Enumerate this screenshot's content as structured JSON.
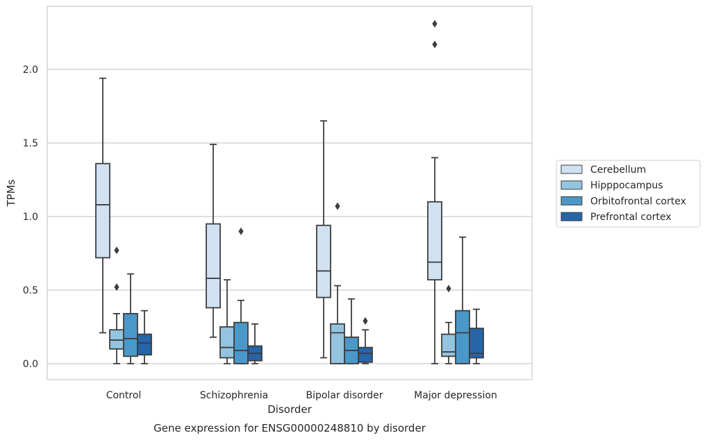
{
  "chart_data": {
    "type": "box",
    "title": "",
    "xlabel": "Disorder",
    "ylabel": "TPMs",
    "caption": "Gene expression for ENSG00000248810 by disorder",
    "ylim": [
      -0.11,
      2.44
    ],
    "yticks": [
      0.0,
      0.5,
      1.0,
      1.5,
      2.0
    ],
    "ytick_labels": [
      "0.0",
      "0.5",
      "1.0",
      "1.5",
      "2.0"
    ],
    "grid": "horizontal",
    "legend_position": "right",
    "categories": [
      "Control",
      "Schizophrenia",
      "Bipolar disorder",
      "Major depression"
    ],
    "series": [
      {
        "name": "Cerebellum",
        "color": "#d0e1f2",
        "boxes": [
          {
            "whislo": 0.21,
            "q1": 0.72,
            "med": 1.08,
            "q3": 1.36,
            "whishi": 1.94,
            "fliers": []
          },
          {
            "whislo": 0.18,
            "q1": 0.38,
            "med": 0.58,
            "q3": 0.95,
            "whishi": 1.49,
            "fliers": []
          },
          {
            "whislo": 0.04,
            "q1": 0.45,
            "med": 0.63,
            "q3": 0.94,
            "whishi": 1.65,
            "fliers": []
          },
          {
            "whislo": 0.0,
            "q1": 0.57,
            "med": 0.69,
            "q3": 1.1,
            "whishi": 1.4,
            "fliers": [
              2.17,
              2.31
            ]
          }
        ]
      },
      {
        "name": "Hipppocampus",
        "color": "#94c4df",
        "boxes": [
          {
            "whislo": 0.0,
            "q1": 0.1,
            "med": 0.16,
            "q3": 0.23,
            "whishi": 0.34,
            "fliers": [
              0.52,
              0.77
            ]
          },
          {
            "whislo": 0.0,
            "q1": 0.04,
            "med": 0.11,
            "q3": 0.25,
            "whishi": 0.57,
            "fliers": []
          },
          {
            "whislo": 0.0,
            "q1": 0.0,
            "med": 0.21,
            "q3": 0.27,
            "whishi": 0.53,
            "fliers": [
              1.07
            ]
          },
          {
            "whislo": 0.0,
            "q1": 0.05,
            "med": 0.08,
            "q3": 0.2,
            "whishi": 0.28,
            "fliers": [
              0.51
            ]
          }
        ]
      },
      {
        "name": "Orbitofrontal cortex",
        "color": "#4a98c9",
        "boxes": [
          {
            "whislo": 0.0,
            "q1": 0.05,
            "med": 0.17,
            "q3": 0.34,
            "whishi": 0.61,
            "fliers": []
          },
          {
            "whislo": 0.0,
            "q1": 0.0,
            "med": 0.09,
            "q3": 0.28,
            "whishi": 0.43,
            "fliers": [
              0.9
            ]
          },
          {
            "whislo": 0.0,
            "q1": 0.0,
            "med": 0.09,
            "q3": 0.18,
            "whishi": 0.44,
            "fliers": []
          },
          {
            "whislo": 0.0,
            "q1": 0.0,
            "med": 0.21,
            "q3": 0.36,
            "whishi": 0.86,
            "fliers": []
          }
        ]
      },
      {
        "name": "Prefrontal cortex",
        "color": "#2565a8",
        "boxes": [
          {
            "whislo": 0.0,
            "q1": 0.06,
            "med": 0.14,
            "q3": 0.2,
            "whishi": 0.36,
            "fliers": []
          },
          {
            "whislo": 0.0,
            "q1": 0.02,
            "med": 0.07,
            "q3": 0.12,
            "whishi": 0.27,
            "fliers": []
          },
          {
            "whislo": 0.0,
            "q1": 0.01,
            "med": 0.07,
            "q3": 0.11,
            "whishi": 0.23,
            "fliers": [
              0.29
            ]
          },
          {
            "whislo": 0.0,
            "q1": 0.04,
            "med": 0.07,
            "q3": 0.24,
            "whishi": 0.37,
            "fliers": []
          }
        ]
      }
    ]
  }
}
